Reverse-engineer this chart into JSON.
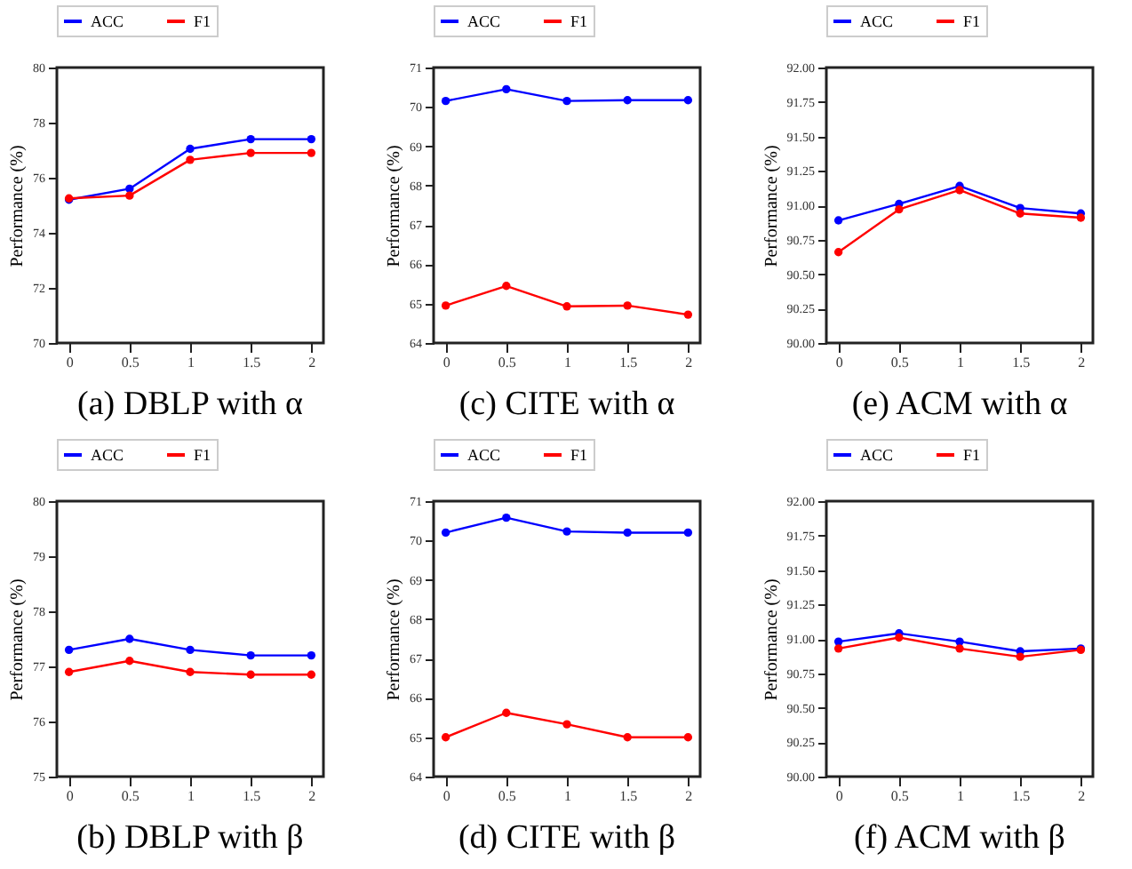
{
  "chart_data": [
    {
      "type": "line",
      "title": "(a) DBLP with α",
      "ylabel": "Performance (%)",
      "x": [
        0,
        0.5,
        1,
        1.5,
        2
      ],
      "xlim": [
        -0.1,
        2.1
      ],
      "xticks": [
        0,
        0.5,
        1,
        1.5,
        2
      ],
      "ylim": [
        70,
        80
      ],
      "yticks": [
        70,
        72,
        74,
        76,
        78,
        80
      ],
      "legend": "top",
      "marker": "circle",
      "grid": false,
      "series": [
        {
          "name": "ACC",
          "color": "#0000ff",
          "values": [
            75.2,
            75.6,
            77.05,
            77.4,
            77.4
          ]
        },
        {
          "name": "F1",
          "color": "#ff0000",
          "values": [
            75.25,
            75.35,
            76.65,
            76.9,
            76.9
          ]
        }
      ]
    },
    {
      "type": "line",
      "title": "(c) CITE with α",
      "ylabel": "Performance (%)",
      "x": [
        0,
        0.5,
        1,
        1.5,
        2
      ],
      "xlim": [
        -0.1,
        2.1
      ],
      "xticks": [
        0,
        0.5,
        1,
        1.5,
        2
      ],
      "ylim": [
        64,
        71
      ],
      "yticks": [
        64,
        65,
        66,
        67,
        68,
        69,
        70,
        71
      ],
      "legend": "top",
      "marker": "circle",
      "grid": false,
      "series": [
        {
          "name": "ACC",
          "color": "#0000ff",
          "values": [
            70.15,
            70.45,
            70.15,
            70.17,
            70.17
          ]
        },
        {
          "name": "F1",
          "color": "#ff0000",
          "values": [
            64.95,
            65.45,
            64.93,
            64.95,
            64.72
          ]
        }
      ]
    },
    {
      "type": "line",
      "title": "(e) ACM with α",
      "ylabel": "Performance (%)",
      "x": [
        0,
        0.5,
        1,
        1.5,
        2
      ],
      "xlim": [
        -0.1,
        2.1
      ],
      "xticks": [
        0,
        0.5,
        1,
        1.5,
        2
      ],
      "ylim": [
        90,
        92
      ],
      "yticks": [
        {
          "value": 90,
          "label": "90.00"
        },
        {
          "value": 90.25,
          "label": "90.25"
        },
        {
          "value": 90.5,
          "label": "90.50"
        },
        {
          "value": 90.75,
          "label": "90.75"
        },
        {
          "value": 91,
          "label": "91.00"
        },
        {
          "value": 91.25,
          "label": "91.25"
        },
        {
          "value": 91.5,
          "label": "91.50"
        },
        {
          "value": 91.75,
          "label": "91.75"
        },
        {
          "value": 92,
          "label": "92.00"
        }
      ],
      "legend": "top",
      "marker": "circle",
      "grid": false,
      "series": [
        {
          "name": "ACC",
          "color": "#0000ff",
          "values": [
            90.89,
            91.01,
            91.14,
            90.98,
            90.94
          ]
        },
        {
          "name": "F1",
          "color": "#ff0000",
          "values": [
            90.66,
            90.97,
            91.11,
            90.94,
            90.91
          ]
        }
      ]
    },
    {
      "type": "line",
      "title": "(b) DBLP with β",
      "ylabel": "Performance (%)",
      "x": [
        0,
        0.5,
        1,
        1.5,
        2
      ],
      "xlim": [
        -0.1,
        2.1
      ],
      "xticks": [
        0,
        0.5,
        1,
        1.5,
        2
      ],
      "ylim": [
        75,
        80
      ],
      "yticks": [
        75,
        76,
        77,
        78,
        79,
        80
      ],
      "legend": "top",
      "marker": "circle",
      "grid": false,
      "series": [
        {
          "name": "ACC",
          "color": "#0000ff",
          "values": [
            77.3,
            77.5,
            77.3,
            77.2,
            77.2
          ]
        },
        {
          "name": "F1",
          "color": "#ff0000",
          "values": [
            76.9,
            77.1,
            76.9,
            76.85,
            76.85
          ]
        }
      ]
    },
    {
      "type": "line",
      "title": "(d) CITE with β",
      "ylabel": "Performance (%)",
      "x": [
        0,
        0.5,
        1,
        1.5,
        2
      ],
      "xlim": [
        -0.1,
        2.1
      ],
      "xticks": [
        0,
        0.5,
        1,
        1.5,
        2
      ],
      "ylim": [
        64,
        71
      ],
      "yticks": [
        64,
        65,
        66,
        67,
        68,
        69,
        70,
        71
      ],
      "legend": "top",
      "marker": "circle",
      "grid": false,
      "series": [
        {
          "name": "ACC",
          "color": "#0000ff",
          "values": [
            70.2,
            70.58,
            70.23,
            70.2,
            70.2
          ]
        },
        {
          "name": "F1",
          "color": "#ff0000",
          "values": [
            65.0,
            65.62,
            65.33,
            65.0,
            65.0
          ]
        }
      ]
    },
    {
      "type": "line",
      "title": "(f) ACM with β",
      "ylabel": "Performance (%)",
      "x": [
        0,
        0.5,
        1,
        1.5,
        2
      ],
      "xlim": [
        -0.1,
        2.1
      ],
      "xticks": [
        0,
        0.5,
        1,
        1.5,
        2
      ],
      "ylim": [
        90,
        92
      ],
      "yticks": [
        {
          "value": 90,
          "label": "90.00"
        },
        {
          "value": 90.25,
          "label": "90.25"
        },
        {
          "value": 90.5,
          "label": "90.50"
        },
        {
          "value": 90.75,
          "label": "90.75"
        },
        {
          "value": 91,
          "label": "91.00"
        },
        {
          "value": 91.25,
          "label": "91.25"
        },
        {
          "value": 91.5,
          "label": "91.50"
        },
        {
          "value": 91.75,
          "label": "91.75"
        },
        {
          "value": 92,
          "label": "92.00"
        }
      ],
      "legend": "top",
      "marker": "circle",
      "grid": false,
      "series": [
        {
          "name": "ACC",
          "color": "#0000ff",
          "values": [
            90.98,
            91.04,
            90.98,
            90.91,
            90.93
          ]
        },
        {
          "name": "F1",
          "color": "#ff0000",
          "values": [
            90.93,
            91.01,
            90.93,
            90.87,
            90.92
          ]
        }
      ]
    }
  ]
}
